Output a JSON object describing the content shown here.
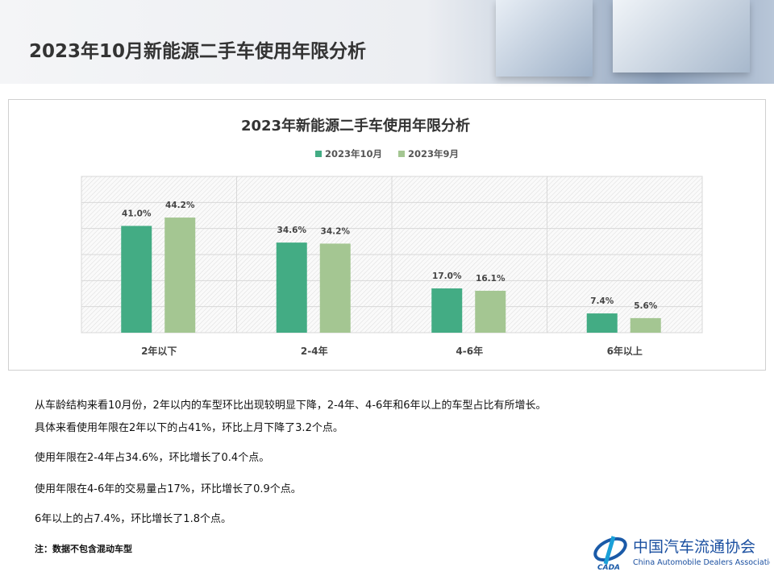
{
  "page_title": "2023年10月新能源二手车使用年限分析",
  "chart_data": {
    "type": "bar",
    "title": "2023年新能源二手车使用年限分析",
    "categories": [
      "2年以下",
      "2-4年",
      "4-6年",
      "6年以上"
    ],
    "series": [
      {
        "name": "2023年10月",
        "values": [
          41.0,
          34.6,
          17.0,
          7.4
        ],
        "labels": [
          "41.0%",
          "34.6%",
          "17.0%",
          "7.4%"
        ],
        "color": "#43ac84"
      },
      {
        "name": "2023年9月",
        "values": [
          44.2,
          34.2,
          16.1,
          5.6
        ],
        "labels": [
          "44.2%",
          "34.2%",
          "16.1%",
          "5.6%"
        ],
        "color": "#a4c692"
      }
    ],
    "ylim": [
      0,
      60
    ],
    "ystep": 10,
    "grid": true,
    "legend": "top",
    "y_ticks_shown": false
  },
  "text": {
    "p1": "从车龄结构来看10月份，2年以内的车型环比出现较明显下降，2-4年、4-6年和6年以上的车型占比有所增长。",
    "p2": "具体来看使用年限在2年以下的占41%，环比上月下降了3.2个点。",
    "p3": "使用年限在2-4年占34.6%，环比增长了0.4个点。",
    "p4": "使用年限在4-6年的交易量占17%，环比增长了0.9个点。",
    "p5": "6年以上的占7.4%，环比增长了1.8个点。",
    "note": "注：数据不包含混动车型"
  },
  "logo": {
    "cn": "中国汽车流通协会",
    "en": "China Automobile Dealers Association",
    "mark": "CADA"
  }
}
